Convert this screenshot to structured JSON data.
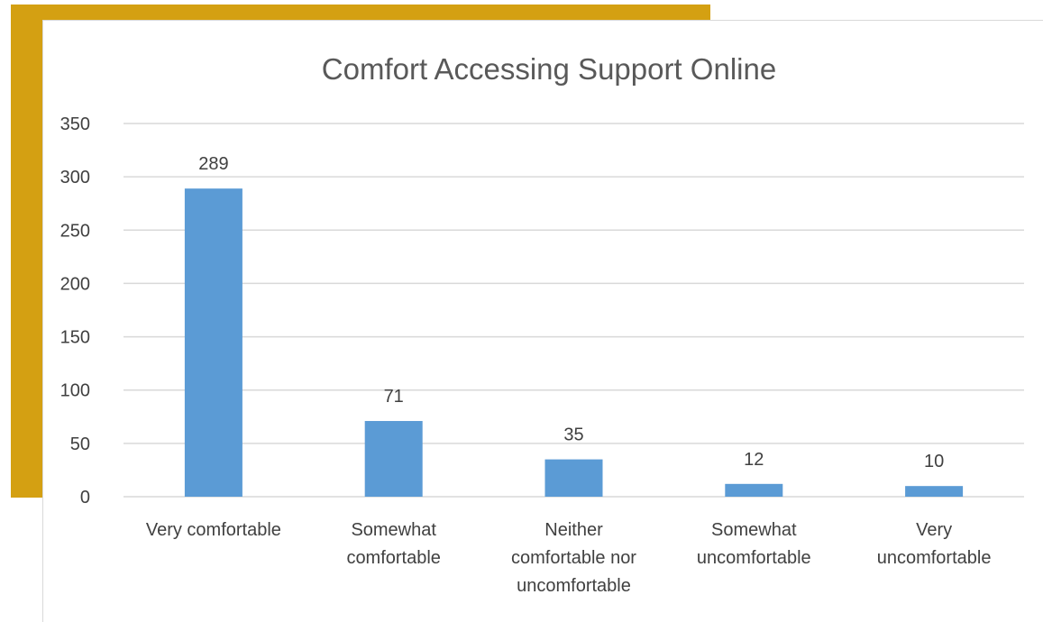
{
  "chart_data": {
    "type": "bar",
    "title": "Comfort Accessing Support Online",
    "xlabel": "",
    "ylabel": "",
    "categories": [
      [
        "Very comfortable"
      ],
      [
        "Somewhat",
        "comfortable"
      ],
      [
        "Neither",
        "comfortable nor",
        "uncomfortable"
      ],
      [
        "Somewhat",
        "uncomfortable"
      ],
      [
        "Very",
        "uncomfortable"
      ]
    ],
    "values": [
      289,
      71,
      35,
      12,
      10
    ],
    "ylim": [
      0,
      350
    ],
    "yticks": [
      0,
      50,
      100,
      150,
      200,
      250,
      300,
      350
    ],
    "grid": true,
    "legend": "none",
    "data_labels": true
  },
  "colors": {
    "bar": "#5B9BD5",
    "grid": "#d9d9d9",
    "background_accent": "#D4A012"
  }
}
